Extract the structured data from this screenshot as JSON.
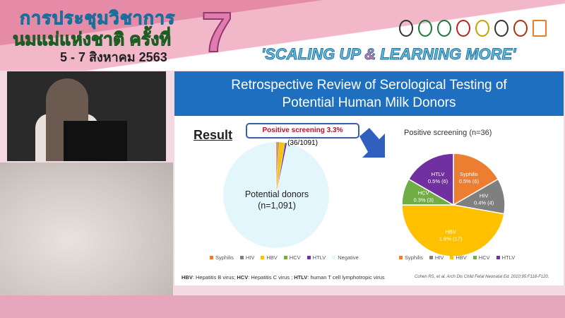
{
  "banner": {
    "thai_line1": "การประชุมวิชาการ",
    "thai_line2": "นมแม่แห่งชาติ ครั้งที่",
    "thai_dates": "5 - 7 สิงหาคม 2563",
    "edition": "7",
    "slogan_a": "'SCALING UP ",
    "slogan_amp": "&",
    "slogan_b": " LEARNING MORE'"
  },
  "slide": {
    "title_line1": "Retrospective Review of Serological Testing of",
    "title_line2": "Potential Human Milk Donors",
    "result_heading": "Result",
    "callout_bold": "Positive screening 3.3%",
    "callout_rest": " (36/1091)",
    "donors_line1": "Potential donors",
    "donors_line2": "(n=1,091)",
    "left_legend": [
      "Syphilis",
      "HIV",
      "HBV",
      "HCV",
      "HTLV",
      "Negative"
    ],
    "footnote": [
      {
        "abbr": "HBV",
        "text": ": Hepatitis B virus; "
      },
      {
        "abbr": "HCV",
        "text": ": Hepatitis C virus ; "
      },
      {
        "abbr": "HTLV",
        "text": ": human T cell lymphotropic virus"
      }
    ],
    "citation": "Cohen RS, et al. Arch Dis Child Fetal Neonatal Ed. 2010;95:F118-F120."
  },
  "chart_data": [
    {
      "type": "pie",
      "title": "",
      "labels": [
        "Syphilis",
        "HIV",
        "HBV",
        "HCV",
        "HTLV",
        "Negative"
      ],
      "values": [
        6,
        4,
        17,
        3,
        6,
        1055
      ],
      "colors": [
        "#ED7D31",
        "#7F7F7F",
        "#FFC000",
        "#70AD47",
        "#7030A0",
        "#E3F6FC"
      ]
    },
    {
      "type": "pie",
      "title": "Positive screening (n=36)",
      "labels": [
        "Syphilis",
        "HIV",
        "HBV",
        "HCV",
        "HTLV"
      ],
      "values": [
        6,
        4,
        17,
        3,
        6
      ],
      "data_labels": [
        "0.5% (6)",
        "0.4% (4)",
        "1.6% (17)",
        "0.3% (3)",
        "0.5% (6)"
      ],
      "colors": [
        "#ED7D31",
        "#7F7F7F",
        "#FFC000",
        "#70AD47",
        "#7030A0"
      ]
    }
  ]
}
